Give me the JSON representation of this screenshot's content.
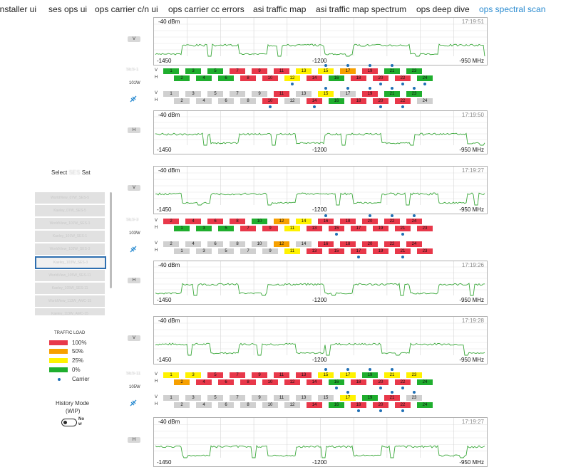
{
  "nav": {
    "tabs": [
      {
        "label": "installer ui",
        "active": false
      },
      {
        "label": "ses ops ui",
        "active": false
      },
      {
        "label": "ops carrier c/n ui",
        "active": false
      },
      {
        "label": "ops carrier cc errors",
        "active": false
      },
      {
        "label": "asi traffic map",
        "active": false
      },
      {
        "label": "asi traffic map spectrum",
        "active": false
      },
      {
        "label": "ops deep dive",
        "active": false
      },
      {
        "label": "ops spectral scan",
        "active": true
      }
    ]
  },
  "sidebar": {
    "select_prefix": "Select",
    "select_masked": "SES",
    "select_suffix": "Sat",
    "sat_list": [
      "WorldView_07W_SES-5",
      "Kaeley_07W_SES-5",
      "WorldView_101W_SES-1",
      "Kaeley_101W_SES-1",
      "WorldView_103W_SES-3",
      "Kaeley_103W_SES-3",
      "WorldView_105W_SES-11",
      "Kaeley_105W_SES-11",
      "WorldView_113W_AMC-15",
      "Kaeley_113W_AMC-15"
    ],
    "selected_index": 5,
    "legend": {
      "title": "TRAFFIC LOAD",
      "items": [
        {
          "label": "100%",
          "color": "#e8384a"
        },
        {
          "label": "50%",
          "color": "#f7a000"
        },
        {
          "label": "25%",
          "color": "#fff200"
        },
        {
          "label": "0%",
          "color": "#1fae2e"
        }
      ],
      "carrier_label": "Carrier",
      "carrier_color": "#1f6fb5"
    },
    "history": {
      "label": "History Mode",
      "sub": "(WIP)",
      "toggle_text": "No",
      "toggle_sub": "w",
      "on": false
    }
  },
  "spectra": [
    {
      "dbm": "-40 dBm",
      "time": "17:19:51",
      "pol": "V",
      "left": "-1450",
      "center": "-1200",
      "right": "-950 MHz"
    },
    {
      "dbm": "-40 dBm",
      "time": "17:19:50",
      "pol": "H",
      "left": "-1450",
      "center": "-1200",
      "right": "-950 MHz"
    },
    {
      "dbm": "-40 dBm",
      "time": "17:19:27",
      "pol": "V",
      "left": "-1450",
      "center": "-1200",
      "right": "-950 MHz"
    },
    {
      "dbm": "-40 dBm",
      "time": "17:19:26",
      "pol": "H",
      "left": "-1450",
      "center": "-1200",
      "right": "-950 MHz"
    },
    {
      "dbm": "-40 dBm",
      "time": "17:19:28",
      "pol": "V",
      "left": "-1450",
      "center": "-1200",
      "right": "-950 MHz"
    },
    {
      "dbm": "-40 dBm",
      "time": "17:19:27",
      "pol": "H",
      "left": "-1450",
      "center": "-1200",
      "right": "-950 MHz"
    }
  ],
  "sat_blocks": [
    {
      "sat_name_masked": "SES-1",
      "orbit": "101W",
      "rows": [
        {
          "pol": "V",
          "cells": [
            [
              "1",
              "g"
            ],
            [
              "3",
              "g"
            ],
            [
              "5",
              "g"
            ],
            [
              "7",
              "r"
            ],
            [
              "9",
              "r"
            ],
            [
              "11",
              "r"
            ],
            [
              "13",
              "y"
            ],
            [
              "15",
              "y"
            ],
            [
              "17",
              "o"
            ],
            [
              "19",
              "r"
            ],
            [
              "21",
              "g"
            ],
            [
              "23",
              "g"
            ]
          ]
        },
        {
          "pol": "H",
          "cells": [
            [
              "2",
              "g"
            ],
            [
              "4",
              "g"
            ],
            [
              "6",
              "g"
            ],
            [
              "8",
              "r"
            ],
            [
              "10",
              "r"
            ],
            [
              "12",
              "y"
            ],
            [
              "14",
              "r"
            ],
            [
              "16",
              "g"
            ],
            [
              "18",
              "r"
            ],
            [
              "20",
              "r"
            ],
            [
              "22",
              "r"
            ],
            [
              "24",
              "g"
            ]
          ]
        },
        {
          "pol": "V",
          "cells": [
            [
              "1",
              "x"
            ],
            [
              "3",
              "x"
            ],
            [
              "5",
              "x"
            ],
            [
              "7",
              "x"
            ],
            [
              "9",
              "x"
            ],
            [
              "11",
              "r"
            ],
            [
              "13",
              "x"
            ],
            [
              "15",
              "y"
            ],
            [
              "17",
              "x"
            ],
            [
              "19",
              "r"
            ],
            [
              "21",
              "g"
            ],
            [
              "23",
              "g"
            ]
          ]
        },
        {
          "pol": "H",
          "cells": [
            [
              "2",
              "x"
            ],
            [
              "4",
              "x"
            ],
            [
              "6",
              "x"
            ],
            [
              "8",
              "x"
            ],
            [
              "10",
              "r"
            ],
            [
              "12",
              "x"
            ],
            [
              "14",
              "r"
            ],
            [
              "16",
              "g"
            ],
            [
              "18",
              "r"
            ],
            [
              "20",
              "r"
            ],
            [
              "22",
              "r"
            ],
            [
              "24",
              "x"
            ]
          ]
        }
      ]
    },
    {
      "sat_name_masked": "SES-3",
      "orbit": "103W",
      "rows": [
        {
          "pol": "V",
          "cells": [
            [
              "2",
              "r"
            ],
            [
              "4",
              "r"
            ],
            [
              "6",
              "r"
            ],
            [
              "8",
              "r"
            ],
            [
              "10",
              "g"
            ],
            [
              "12",
              "o"
            ],
            [
              "14",
              "y"
            ],
            [
              "16",
              "r"
            ],
            [
              "18",
              "r"
            ],
            [
              "20",
              "r"
            ],
            [
              "22",
              "r"
            ],
            [
              "24",
              "r"
            ]
          ]
        },
        {
          "pol": "H",
          "cells": [
            [
              "1",
              "g"
            ],
            [
              "3",
              "g"
            ],
            [
              "5",
              "g"
            ],
            [
              "7",
              "r"
            ],
            [
              "9",
              "r"
            ],
            [
              "11",
              "y"
            ],
            [
              "13",
              "r"
            ],
            [
              "15",
              "r"
            ],
            [
              "17",
              "r"
            ],
            [
              "19",
              "r"
            ],
            [
              "21",
              "r"
            ],
            [
              "23",
              "r"
            ]
          ]
        },
        {
          "pol": "V",
          "cells": [
            [
              "2",
              "x"
            ],
            [
              "4",
              "x"
            ],
            [
              "6",
              "x"
            ],
            [
              "8",
              "x"
            ],
            [
              "10",
              "x"
            ],
            [
              "12",
              "o"
            ],
            [
              "14",
              "x"
            ],
            [
              "16",
              "r"
            ],
            [
              "18",
              "r"
            ],
            [
              "20",
              "r"
            ],
            [
              "22",
              "r"
            ],
            [
              "24",
              "r"
            ]
          ]
        },
        {
          "pol": "H",
          "cells": [
            [
              "1",
              "x"
            ],
            [
              "3",
              "x"
            ],
            [
              "5",
              "x"
            ],
            [
              "7",
              "x"
            ],
            [
              "9",
              "x"
            ],
            [
              "11",
              "y"
            ],
            [
              "13",
              "r"
            ],
            [
              "15",
              "r"
            ],
            [
              "17",
              "r"
            ],
            [
              "19",
              "r"
            ],
            [
              "21",
              "r"
            ],
            [
              "23",
              "r"
            ]
          ]
        }
      ]
    },
    {
      "sat_name_masked": "SES-11",
      "orbit": "105W",
      "rows": [
        {
          "pol": "V",
          "cells": [
            [
              "1",
              "y"
            ],
            [
              "3",
              "y"
            ],
            [
              "5",
              "r"
            ],
            [
              "7",
              "r"
            ],
            [
              "9",
              "r"
            ],
            [
              "11",
              "r"
            ],
            [
              "13",
              "r"
            ],
            [
              "15",
              "y"
            ],
            [
              "17",
              "y"
            ],
            [
              "19",
              "g"
            ],
            [
              "21",
              "y"
            ],
            [
              "23",
              "y"
            ]
          ]
        },
        {
          "pol": "H",
          "cells": [
            [
              "2",
              "o"
            ],
            [
              "4",
              "r"
            ],
            [
              "6",
              "r"
            ],
            [
              "8",
              "r"
            ],
            [
              "10",
              "r"
            ],
            [
              "12",
              "r"
            ],
            [
              "14",
              "r"
            ],
            [
              "16",
              "g"
            ],
            [
              "18",
              "r"
            ],
            [
              "20",
              "r"
            ],
            [
              "22",
              "r"
            ],
            [
              "24",
              "g"
            ]
          ]
        },
        {
          "pol": "V",
          "cells": [
            [
              "1",
              "x"
            ],
            [
              "3",
              "x"
            ],
            [
              "5",
              "x"
            ],
            [
              "7",
              "x"
            ],
            [
              "9",
              "x"
            ],
            [
              "11",
              "x"
            ],
            [
              "13",
              "x"
            ],
            [
              "15",
              "x"
            ],
            [
              "17",
              "y"
            ],
            [
              "19",
              "g"
            ],
            [
              "21",
              "r"
            ],
            [
              "23",
              "x"
            ]
          ]
        },
        {
          "pol": "H",
          "cells": [
            [
              "2",
              "x"
            ],
            [
              "4",
              "x"
            ],
            [
              "6",
              "x"
            ],
            [
              "8",
              "x"
            ],
            [
              "10",
              "x"
            ],
            [
              "12",
              "x"
            ],
            [
              "14",
              "r"
            ],
            [
              "16",
              "g"
            ],
            [
              "18",
              "r"
            ],
            [
              "20",
              "r"
            ],
            [
              "22",
              "r"
            ],
            [
              "24",
              "g"
            ]
          ]
        }
      ]
    }
  ],
  "colors": {
    "g": "#1fae2e",
    "r": "#e8384a",
    "y": "#fff200",
    "o": "#f7a000",
    "x": "#d0d0d0",
    "trace": "#3aa83a"
  }
}
